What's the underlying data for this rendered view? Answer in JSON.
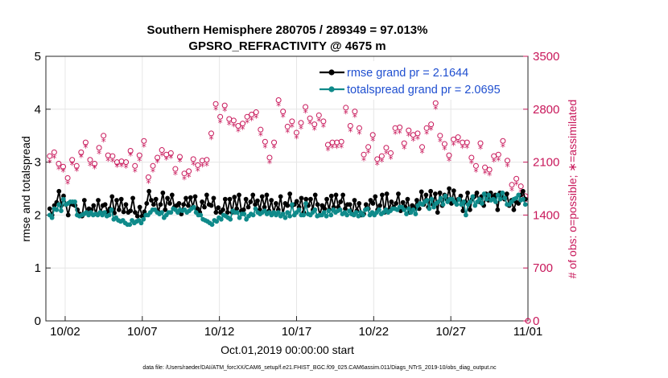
{
  "chart_data": {
    "type": "line",
    "title_line1": "Southern Hemisphere 280705 / 289349 = 97.013%",
    "title_line2": "GPSRO_REFRACTIVITY @ 4675 m",
    "xlabel": "Oct.01,2019 00:00:00 start",
    "ylabel_left": "rmse and totalspread",
    "ylabel_right": "# of obs: o=possible; ∗=assimilated",
    "footnote": "data file: /Users/raeder/DAI/ATM_forcXX/CAM6_setup/f.e21.FHIST_BGC.f09_025.CAM6assim.011/Diags_NTrS_2019-10/obs_diag_output.nc",
    "xlim": [
      0.75,
      32.0
    ],
    "ylim_left": [
      0,
      5
    ],
    "ylim_right": [
      0,
      3500
    ],
    "x_ticks": [
      {
        "v": 2,
        "label": "10/02"
      },
      {
        "v": 7,
        "label": "10/07"
      },
      {
        "v": 12,
        "label": "10/12"
      },
      {
        "v": 17,
        "label": "10/17"
      },
      {
        "v": 22,
        "label": "10/22"
      },
      {
        "v": 27,
        "label": "10/27"
      },
      {
        "v": 32,
        "label": "11/01"
      }
    ],
    "y_ticks_left": [
      "0",
      "1",
      "2",
      "3",
      "4",
      "5"
    ],
    "y_ticks_right": [
      "0",
      "700",
      "1400",
      "2100",
      "2800",
      "3500"
    ],
    "colors": {
      "rmse": "#000000",
      "spread": "#0f8a8a",
      "obs": "#c8175a",
      "legend_text": "#1f4fd0",
      "grid": "#e6e6e6"
    },
    "legend": [
      {
        "key": "rmse",
        "label": "rmse grand pr = 2.1644"
      },
      {
        "key": "spread",
        "label": "totalspread grand pr = 2.0695"
      }
    ],
    "series": [
      {
        "name": "rmse",
        "values": [
          2.12,
          2.0,
          2.18,
          2.24,
          2.45,
          2.18,
          2.36,
          2.2,
          2.0,
          2.22,
          2.2,
          2.18,
          2.1,
          2.02,
          1.98,
          2.28,
          2.05,
          2.12,
          2.1,
          2.18,
          2.02,
          2.28,
          2.05,
          2.18,
          2.2,
          2.06,
          2.12,
          2.35,
          2.04,
          2.28,
          2.1,
          2.3,
          2.06,
          2.2,
          2.05,
          2.08,
          2.32,
          2.05,
          1.98,
          2.15,
          1.98,
          2.06,
          2.22,
          2.45,
          2.28,
          2.2,
          2.3,
          2.06,
          2.2,
          2.42,
          2.1,
          2.32,
          2.22,
          2.38,
          2.15,
          2.18,
          2.22,
          2.02,
          2.2,
          2.32,
          2.18,
          2.33,
          2.15,
          2.35,
          2.12,
          2.05,
          2.25,
          2.15,
          2.38,
          2.2,
          2.18,
          2.32,
          2.05,
          2.14,
          2.05,
          2.1,
          2.3,
          2.05,
          2.3,
          2.05,
          2.34,
          2.12,
          2.38,
          2.08,
          2.1,
          2.3,
          2.15,
          2.25,
          2.38,
          2.2,
          2.27,
          2.1,
          2.35,
          2.15,
          2.38,
          2.08,
          2.28,
          2.05,
          2.22,
          2.1,
          2.35,
          2.02,
          2.22,
          2.18,
          2.4,
          2.18,
          2.2,
          2.26,
          2.15,
          2.32,
          2.05,
          2.3,
          2.18,
          2.3,
          2.1,
          2.38,
          2.2,
          2.0,
          2.18,
          2.12,
          2.3,
          2.1,
          2.36,
          2.15,
          2.38,
          2.15,
          2.25,
          2.38,
          2.12,
          2.2,
          2.2,
          2.02,
          2.28,
          2.08,
          2.22,
          2.0,
          2.02,
          2.2,
          2.12,
          2.28,
          2.22,
          2.35,
          2.1,
          2.18,
          2.38,
          2.05,
          2.4,
          2.1,
          2.25,
          2.15,
          2.22,
          2.4,
          2.08,
          2.24,
          2.15,
          2.3,
          2.05,
          2.18,
          2.12,
          2.28,
          2.12,
          2.44,
          2.2,
          2.38,
          2.15,
          2.45,
          2.2,
          2.4,
          2.05,
          2.42,
          2.18,
          2.38,
          2.3,
          2.5,
          2.22,
          2.46,
          2.25,
          2.3,
          2.36,
          2.08,
          2.25,
          2.42,
          2.1,
          2.3,
          2.35,
          2.42,
          2.25,
          2.35,
          2.18,
          2.4,
          2.28,
          2.42,
          2.35,
          2.38,
          2.1,
          2.42,
          2.35,
          2.3,
          2.4,
          2.18,
          2.28,
          2.1,
          2.25,
          2.22,
          2.38,
          2.45,
          2.3
        ]
      },
      {
        "name": "totalspread",
        "values": [
          2.0,
          1.95,
          2.12,
          2.1,
          2.2,
          2.08,
          2.3,
          2.2,
          2.22,
          2.25,
          2.25,
          2.25,
          2.0,
          1.98,
          2.0,
          2.02,
          2.05,
          2.0,
          2.05,
          2.0,
          2.02,
          2.0,
          2.05,
          2.0,
          2.05,
          1.98,
          2.0,
          2.1,
          1.92,
          1.95,
          1.9,
          1.88,
          1.9,
          1.85,
          1.82,
          1.82,
          1.9,
          1.85,
          1.88,
          1.9,
          1.85,
          1.92,
          2.0,
          2.0,
          2.05,
          2.1,
          2.1,
          2.05,
          2.02,
          2.05,
          1.95,
          2.0,
          2.05,
          2.05,
          2.12,
          2.1,
          2.05,
          2.1,
          2.08,
          2.1,
          2.05,
          2.08,
          2.12,
          2.15,
          2.05,
          2.0,
          2.0,
          1.92,
          1.9,
          1.88,
          1.85,
          1.82,
          1.9,
          1.88,
          1.95,
          1.92,
          2.0,
          1.98,
          1.95,
          1.92,
          2.08,
          2.05,
          2.05,
          1.95,
          2.02,
          2.02,
          1.92,
          1.98,
          2.02,
          2.0,
          2.12,
          2.05,
          2.02,
          2.05,
          2.08,
          2.02,
          2.05,
          2.0,
          2.05,
          2.0,
          2.05,
          1.98,
          2.02,
          1.95,
          2.05,
          1.98,
          2.2,
          2.0,
          2.05,
          2.1,
          2.0,
          2.0,
          2.22,
          2.02,
          2.0,
          2.05,
          2.1,
          1.98,
          2.0,
          2.0,
          2.05,
          1.98,
          2.08,
          2.0,
          2.1,
          2.05,
          2.08,
          2.1,
          2.02,
          2.05,
          2.0,
          2.08,
          2.02,
          2.0,
          2.05,
          1.98,
          2.05,
          2.0,
          2.1,
          2.12,
          2.0,
          2.05,
          2.0,
          2.05,
          2.1,
          2.02,
          2.05,
          2.1,
          2.05,
          2.08,
          2.12,
          2.12,
          2.1,
          2.15,
          2.15,
          2.1,
          2.02,
          2.12,
          2.05,
          2.1,
          2.02,
          2.18,
          2.22,
          2.2,
          2.25,
          2.28,
          2.12,
          2.3,
          2.15,
          2.22,
          2.25,
          2.32,
          2.2,
          2.36,
          2.25,
          2.3,
          2.3,
          2.25,
          2.2,
          2.3,
          2.2,
          2.25,
          2.0,
          2.2,
          2.25,
          2.35,
          2.18,
          2.25,
          2.3,
          2.22,
          2.4,
          2.3,
          2.38,
          2.28,
          2.3,
          2.25,
          2.38,
          2.3,
          2.42,
          2.32,
          2.2,
          2.2,
          2.25,
          2.3,
          2.32,
          2.38,
          2.28,
          2.3,
          2.2
        ]
      },
      {
        "name": "possible",
        "values": [
          2180,
          2280,
          2230,
          2120,
          2080,
          2230,
          2040,
          1800,
          1890,
          2040,
          2130,
          2160,
          2050,
          2080,
          2230,
          2170,
          2360,
          2300,
          2130,
          2080,
          2080,
          2260,
          2290,
          2430,
          2450,
          2150,
          2190,
          2390,
          2180,
          2240,
          2100,
          2010,
          2110,
          2050,
          2100,
          2360,
          2250,
          2260,
          2050,
          2000,
          2190,
          2370,
          2380,
          2130,
          1900,
          1950,
          2050,
          2070,
          2160,
          2120,
          2260,
          2000,
          2200,
          2270,
          2220,
          2120,
          2010,
          2050,
          2170,
          2030,
          1950,
          2280,
          1980,
          2060,
          2140,
          2280,
          2060,
          2170,
          2120,
          2210,
          2130,
          2270,
          2480,
          2140,
          2870,
          2830,
          2700,
          2900,
          2850,
          2540,
          2670,
          2710,
          2650,
          2780,
          2580,
          2560,
          2610,
          2750,
          2700,
          2920,
          2730,
          2830,
          2760,
          2500,
          2530,
          2580,
          2370,
          2210,
          2160,
          2260,
          2360,
          2700,
          2920,
          2960,
          2770,
          2830,
          2570,
          2900,
          2640,
          2540,
          2490,
          2560,
          2620,
          2720,
          2830,
          2870,
          2680,
          2600,
          2600,
          2540,
          2720,
          2900,
          2640,
          2560,
          2330,
          2300,
          2360,
          2290,
          2360,
          2440,
          2370,
          2590,
          2820,
          2650,
          2580,
          2420,
          2770,
          2510,
          2550,
          2420,
          2200,
          2230,
          2300,
          2230,
          2460,
          2330,
          2140,
          2200,
          2180,
          2250,
          2290,
          2140,
          2220,
          2320,
          2550,
          2640,
          2560,
          2470,
          2350,
          2370,
          2520,
          2590,
          2460,
          2710,
          2480,
          2320,
          2300,
          2570,
          2550,
          2380,
          2600,
          2710,
          2880,
          2640,
          2450,
          2240,
          2340,
          2440,
          2190,
          2160,
          2400,
          2300,
          2430,
          2500,
          2360,
          2290,
          2360,
          2120,
          2160,
          2260,
          2050,
          2190,
          2350,
          2140,
          2030,
          1920,
          2000,
          2060,
          2180,
          2160,
          2200,
          2320,
          2380,
          2230,
          2120,
          2040,
          1800,
          1750,
          1880,
          1940,
          1780,
          1800,
          1650
        ]
      },
      {
        "name": "assimilated",
        "values": [
          2100,
          2220,
          2160,
          2050,
          2010,
          2170,
          1980,
          1720,
          1820,
          1980,
          2070,
          2100,
          1990,
          2020,
          2170,
          2100,
          2300,
          2240,
          2060,
          2010,
          2020,
          2200,
          2220,
          2370,
          2380,
          2080,
          2120,
          2330,
          2110,
          2180,
          2040,
          1940,
          2050,
          1990,
          2030,
          2300,
          2190,
          2190,
          1980,
          1930,
          2120,
          2310,
          2310,
          2060,
          1830,
          1890,
          1980,
          2000,
          2100,
          2050,
          2190,
          1930,
          2140,
          2200,
          2160,
          2050,
          1940,
          1980,
          2110,
          1960,
          1880,
          2220,
          1910,
          1990,
          2070,
          2220,
          1990,
          2110,
          2050,
          2150,
          2060,
          2200,
          2410,
          2070,
          2800,
          2760,
          2630,
          2830,
          2780,
          2470,
          2600,
          2640,
          2580,
          2710,
          2510,
          2490,
          2540,
          2680,
          2630,
          2850,
          2660,
          2760,
          2690,
          2430,
          2460,
          2510,
          2300,
          2140,
          2090,
          2190,
          2290,
          2630,
          2850,
          2890,
          2700,
          2760,
          2500,
          2830,
          2570,
          2470,
          2420,
          2490,
          2550,
          2650,
          2760,
          2800,
          2610,
          2530,
          2530,
          2470,
          2650,
          2830,
          2570,
          2490,
          2260,
          2230,
          2290,
          2220,
          2290,
          2370,
          2300,
          2520,
          2750,
          2580,
          2510,
          2350,
          2700,
          2440,
          2480,
          2350,
          2130,
          2160,
          2230,
          2160,
          2390,
          2260,
          2070,
          2130,
          2110,
          2180,
          2220,
          2070,
          2150,
          2250,
          2480,
          2570,
          2490,
          2400,
          2280,
          2300,
          2450,
          2520,
          2390,
          2640,
          2410,
          2250,
          2230,
          2500,
          2480,
          2310,
          2530,
          2640,
          2810,
          2570,
          2380,
          2170,
          2270,
          2370,
          2120,
          2090,
          2330,
          2230,
          2360,
          2430,
          2290,
          2220,
          2290,
          2050,
          2090,
          2190,
          1980,
          2120,
          2280,
          2070,
          1960,
          1850,
          1930,
          1990,
          2110,
          2090,
          2130,
          2250,
          2310,
          2160,
          2050,
          1970,
          1730,
          1680,
          1810,
          1870,
          1710,
          1730,
          1580
        ]
      }
    ]
  }
}
